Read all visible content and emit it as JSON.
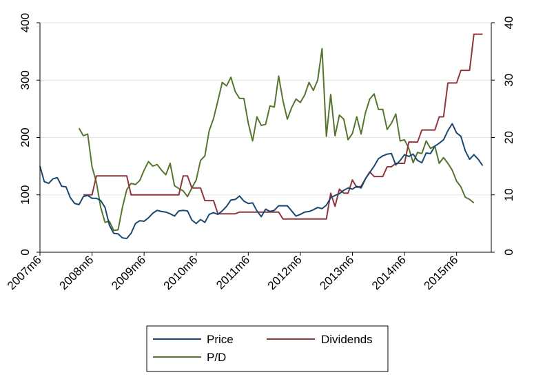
{
  "chart_data": {
    "type": "line",
    "grid": true,
    "legend_position": "bottom",
    "y_left": {
      "range": [
        0,
        400
      ],
      "ticks": [
        0,
        100,
        200,
        300,
        400
      ],
      "tick_labels": [
        "0",
        "100",
        "200",
        "300",
        "400"
      ]
    },
    "y_right": {
      "range": [
        0,
        40
      ],
      "ticks": [
        0,
        10,
        20,
        30,
        40
      ],
      "tick_labels": [
        "0",
        "10",
        "20",
        "30",
        "40"
      ]
    },
    "x_axis": {
      "range": [
        "2007m6",
        "2016m2"
      ],
      "ticks": [
        "2007m6",
        "2008m6",
        "2009m6",
        "2010m6",
        "2011m6",
        "2012m6",
        "2013m6",
        "2014m6",
        "2015m6"
      ],
      "tick_labels": [
        "2007m6",
        "2008m6",
        "2009m6",
        "2010m6",
        "2011m6",
        "2012m6",
        "2013m6",
        "2014m6",
        "2015m6"
      ]
    },
    "series": [
      {
        "name": "Price",
        "axis": "left",
        "color": "#1a476f",
        "points": [
          [
            "2007m6",
            150
          ],
          [
            "2007m7",
            123
          ],
          [
            "2007m8",
            120
          ],
          [
            "2007m9",
            128
          ],
          [
            "2007m10",
            130
          ],
          [
            "2007m11",
            115
          ],
          [
            "2007m12",
            114
          ],
          [
            "2008m1",
            95
          ],
          [
            "2008m2",
            85
          ],
          [
            "2008m3",
            83
          ],
          [
            "2008m4",
            97
          ],
          [
            "2008m5",
            99
          ],
          [
            "2008m6",
            94
          ],
          [
            "2008m7",
            94
          ],
          [
            "2008m8",
            90
          ],
          [
            "2008m9",
            78
          ],
          [
            "2008m10",
            47
          ],
          [
            "2008m11",
            33
          ],
          [
            "2008m12",
            32
          ],
          [
            "2009m1",
            25
          ],
          [
            "2009m2",
            24
          ],
          [
            "2009m3",
            33
          ],
          [
            "2009m4",
            50
          ],
          [
            "2009m5",
            55
          ],
          [
            "2009m6",
            54
          ],
          [
            "2009m7",
            60
          ],
          [
            "2009m8",
            68
          ],
          [
            "2009m9",
            73
          ],
          [
            "2009m10",
            71
          ],
          [
            "2009m11",
            70
          ],
          [
            "2009m12",
            67
          ],
          [
            "2010m1",
            63
          ],
          [
            "2010m2",
            72
          ],
          [
            "2010m3",
            73
          ],
          [
            "2010m4",
            72
          ],
          [
            "2010m5",
            56
          ],
          [
            "2010m6",
            50
          ],
          [
            "2010m7",
            57
          ],
          [
            "2010m8",
            52
          ],
          [
            "2010m9",
            66
          ],
          [
            "2010m10",
            69
          ],
          [
            "2010m11",
            66
          ],
          [
            "2010m12",
            72
          ],
          [
            "2011m1",
            80
          ],
          [
            "2011m2",
            91
          ],
          [
            "2011m3",
            92
          ],
          [
            "2011m4",
            98
          ],
          [
            "2011m5",
            89
          ],
          [
            "2011m6",
            85
          ],
          [
            "2011m7",
            86
          ],
          [
            "2011m8",
            72
          ],
          [
            "2011m9",
            62
          ],
          [
            "2011m10",
            75
          ],
          [
            "2011m11",
            71
          ],
          [
            "2011m12",
            73
          ],
          [
            "2012m1",
            81
          ],
          [
            "2012m2",
            81
          ],
          [
            "2012m3",
            81
          ],
          [
            "2012m4",
            72
          ],
          [
            "2012m5",
            63
          ],
          [
            "2012m6",
            66
          ],
          [
            "2012m7",
            70
          ],
          [
            "2012m8",
            71
          ],
          [
            "2012m9",
            74
          ],
          [
            "2012m10",
            78
          ],
          [
            "2012m11",
            76
          ],
          [
            "2012m12",
            82
          ],
          [
            "2013m1",
            95
          ],
          [
            "2013m2",
            99
          ],
          [
            "2013m3",
            102
          ],
          [
            "2013m4",
            108
          ],
          [
            "2013m5",
            112
          ],
          [
            "2013m6",
            110
          ],
          [
            "2013m7",
            115
          ],
          [
            "2013m8",
            112
          ],
          [
            "2013m9",
            128
          ],
          [
            "2013m10",
            139
          ],
          [
            "2013m11",
            150
          ],
          [
            "2013m12",
            163
          ],
          [
            "2014m1",
            168
          ],
          [
            "2014m2",
            171
          ],
          [
            "2014m3",
            172
          ],
          [
            "2014m4",
            152
          ],
          [
            "2014m5",
            160
          ],
          [
            "2014m6",
            170
          ],
          [
            "2014m7",
            167
          ],
          [
            "2014m8",
            171
          ],
          [
            "2014m9",
            160
          ],
          [
            "2014m10",
            156
          ],
          [
            "2014m11",
            173
          ],
          [
            "2014m12",
            172
          ],
          [
            "2015m1",
            185
          ],
          [
            "2015m2",
            190
          ],
          [
            "2015m3",
            196
          ],
          [
            "2015m4",
            212
          ],
          [
            "2015m5",
            224
          ],
          [
            "2015m6",
            208
          ],
          [
            "2015m7",
            202
          ],
          [
            "2015m8",
            177
          ],
          [
            "2015m9",
            162
          ],
          [
            "2015m10",
            170
          ],
          [
            "2015m11",
            162
          ],
          [
            "2015m12",
            151
          ]
        ]
      },
      {
        "name": "Dividends",
        "axis": "right",
        "color": "#90353b",
        "points": [
          [
            "2008m4",
            10
          ],
          [
            "2008m5",
            10
          ],
          [
            "2008m6",
            10
          ],
          [
            "2008m7",
            13.3
          ],
          [
            "2008m8",
            13.3
          ],
          [
            "2008m9",
            13.3
          ],
          [
            "2008m10",
            13.3
          ],
          [
            "2008m11",
            13.3
          ],
          [
            "2008m12",
            13.3
          ],
          [
            "2009m1",
            13.3
          ],
          [
            "2009m2",
            13.3
          ],
          [
            "2009m3",
            10
          ],
          [
            "2009m4",
            10
          ],
          [
            "2009m5",
            10
          ],
          [
            "2009m6",
            10
          ],
          [
            "2009m7",
            10
          ],
          [
            "2009m8",
            10
          ],
          [
            "2009m9",
            10
          ],
          [
            "2009m10",
            10
          ],
          [
            "2009m11",
            10
          ],
          [
            "2009m12",
            10
          ],
          [
            "2010m1",
            10
          ],
          [
            "2010m2",
            10
          ],
          [
            "2010m3",
            13.3
          ],
          [
            "2010m4",
            13.3
          ],
          [
            "2010m5",
            11.2
          ],
          [
            "2010m6",
            11.2
          ],
          [
            "2010m7",
            11.2
          ],
          [
            "2010m8",
            9
          ],
          [
            "2010m9",
            9
          ],
          [
            "2010m10",
            9
          ],
          [
            "2010m11",
            6.7
          ],
          [
            "2010m12",
            6.7
          ],
          [
            "2011m1",
            6.7
          ],
          [
            "2011m2",
            6.7
          ],
          [
            "2011m3",
            6.7
          ],
          [
            "2011m4",
            7
          ],
          [
            "2011m5",
            7
          ],
          [
            "2011m6",
            7
          ],
          [
            "2011m7",
            7
          ],
          [
            "2011m8",
            7
          ],
          [
            "2011m9",
            7
          ],
          [
            "2011m10",
            7
          ],
          [
            "2011m11",
            7
          ],
          [
            "2011m12",
            7
          ],
          [
            "2012m1",
            7
          ],
          [
            "2012m2",
            5.8
          ],
          [
            "2012m3",
            5.8
          ],
          [
            "2012m4",
            5.8
          ],
          [
            "2012m5",
            5.8
          ],
          [
            "2012m6",
            5.8
          ],
          [
            "2012m7",
            5.8
          ],
          [
            "2012m8",
            5.8
          ],
          [
            "2012m9",
            5.8
          ],
          [
            "2012m10",
            5.8
          ],
          [
            "2012m11",
            5.8
          ],
          [
            "2012m12",
            5.8
          ],
          [
            "2013m1",
            10.3
          ],
          [
            "2013m2",
            8
          ],
          [
            "2013m3",
            11
          ],
          [
            "2013m4",
            10.3
          ],
          [
            "2013m5",
            10.3
          ],
          [
            "2013m6",
            12.6
          ],
          [
            "2013m7",
            11.3
          ],
          [
            "2013m8",
            11.5
          ],
          [
            "2013m9",
            12.8
          ],
          [
            "2013m10",
            14
          ],
          [
            "2013m11",
            13.2
          ],
          [
            "2013m12",
            13.2
          ],
          [
            "2014m1",
            13.2
          ],
          [
            "2014m2",
            14.9
          ],
          [
            "2014m3",
            14.9
          ],
          [
            "2014m4",
            15.5
          ],
          [
            "2014m5",
            15.5
          ],
          [
            "2014m6",
            15.5
          ],
          [
            "2014m7",
            19.2
          ],
          [
            "2014m8",
            19.2
          ],
          [
            "2014m9",
            19.2
          ],
          [
            "2014m10",
            21.3
          ],
          [
            "2014m11",
            21.3
          ],
          [
            "2014m12",
            21.3
          ],
          [
            "2015m1",
            21.3
          ],
          [
            "2015m2",
            23.6
          ],
          [
            "2015m3",
            23.6
          ],
          [
            "2015m4",
            29.5
          ],
          [
            "2015m5",
            29.5
          ],
          [
            "2015m6",
            29.5
          ],
          [
            "2015m7",
            31.7
          ],
          [
            "2015m8",
            31.7
          ],
          [
            "2015m9",
            31.7
          ],
          [
            "2015m10",
            38
          ],
          [
            "2015m11",
            38
          ],
          [
            "2015m12",
            38
          ]
        ]
      },
      {
        "name": "P/D",
        "axis": "right",
        "color": "#55752f",
        "points": [
          [
            "2008m3",
            21.6
          ],
          [
            "2008m4",
            20.3
          ],
          [
            "2008m5",
            20.6
          ],
          [
            "2008m6",
            14.9
          ],
          [
            "2008m7",
            12.2
          ],
          [
            "2008m8",
            7.8
          ],
          [
            "2008m9",
            5.2
          ],
          [
            "2008m10",
            5.4
          ],
          [
            "2008m11",
            3.8
          ],
          [
            "2008m12",
            3.9
          ],
          [
            "2009m1",
            7.8
          ],
          [
            "2009m2",
            10.9
          ],
          [
            "2009m3",
            12
          ],
          [
            "2009m4",
            11.8
          ],
          [
            "2009m5",
            12.5
          ],
          [
            "2009m6",
            14.3
          ],
          [
            "2009m7",
            15.8
          ],
          [
            "2009m8",
            15.0
          ],
          [
            "2009m9",
            15.3
          ],
          [
            "2009m10",
            14.3
          ],
          [
            "2009m11",
            13.5
          ],
          [
            "2009m12",
            15.5
          ],
          [
            "2010m1",
            11.6
          ],
          [
            "2010m2",
            11.1
          ],
          [
            "2010m3",
            10.7
          ],
          [
            "2010m4",
            9.7
          ],
          [
            "2010m5",
            11.2
          ],
          [
            "2010m6",
            12.6
          ],
          [
            "2010m7",
            16
          ],
          [
            "2010m8",
            16.8
          ],
          [
            "2010m9",
            21.2
          ],
          [
            "2010m10",
            23.3
          ],
          [
            "2010m11",
            26.4
          ],
          [
            "2010m12",
            29.6
          ],
          [
            "2011m1",
            29
          ],
          [
            "2011m2",
            30.5
          ],
          [
            "2011m3",
            28
          ],
          [
            "2011m4",
            26.8
          ],
          [
            "2011m5",
            26.8
          ],
          [
            "2011m6",
            22.5
          ],
          [
            "2011m7",
            19.4
          ],
          [
            "2011m8",
            23.6
          ],
          [
            "2011m9",
            22.1
          ],
          [
            "2011m10",
            22.3
          ],
          [
            "2011m11",
            25.5
          ],
          [
            "2011m12",
            25.3
          ],
          [
            "2012m1",
            30.7
          ],
          [
            "2012m2",
            26.4
          ],
          [
            "2012m3",
            23.2
          ],
          [
            "2012m4",
            25.2
          ],
          [
            "2012m5",
            26.7
          ],
          [
            "2012m6",
            26.1
          ],
          [
            "2012m7",
            27.4
          ],
          [
            "2012m8",
            29.6
          ],
          [
            "2012m9",
            28.2
          ],
          [
            "2012m10",
            30
          ],
          [
            "2012m11",
            35.5
          ],
          [
            "2012m12",
            20.2
          ],
          [
            "2013m1",
            27.5
          ],
          [
            "2013m2",
            20.3
          ],
          [
            "2013m3",
            23.9
          ],
          [
            "2013m4",
            23.2
          ],
          [
            "2013m5",
            19.6
          ],
          [
            "2013m6",
            20.7
          ],
          [
            "2013m7",
            23.6
          ],
          [
            "2013m8",
            20.6
          ],
          [
            "2013m9",
            24.3
          ],
          [
            "2013m10",
            26.7
          ],
          [
            "2013m11",
            27.6
          ],
          [
            "2013m12",
            24.9
          ],
          [
            "2014m1",
            24.9
          ],
          [
            "2014m2",
            21.4
          ],
          [
            "2014m3",
            22.5
          ],
          [
            "2014m4",
            24.1
          ],
          [
            "2014m5",
            19.4
          ],
          [
            "2014m6",
            19.6
          ],
          [
            "2014m7",
            18.1
          ],
          [
            "2014m8",
            15.6
          ],
          [
            "2014m9",
            17.4
          ],
          [
            "2014m10",
            17.2
          ],
          [
            "2014m11",
            19.4
          ],
          [
            "2014m12",
            18.1
          ],
          [
            "2015m1",
            18.5
          ],
          [
            "2015m2",
            15.5
          ],
          [
            "2015m3",
            16.5
          ],
          [
            "2015m4",
            15.5
          ],
          [
            "2015m5",
            14.3
          ],
          [
            "2015m6",
            12.4
          ],
          [
            "2015m7",
            11.4
          ],
          [
            "2015m8",
            9.6
          ],
          [
            "2015m9",
            9.2
          ],
          [
            "2015m10",
            8.6
          ]
        ]
      }
    ]
  }
}
